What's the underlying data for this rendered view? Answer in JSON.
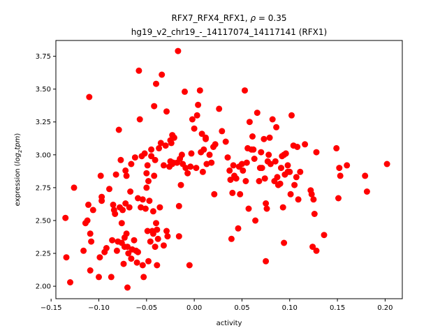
{
  "chart_data": {
    "type": "scatter",
    "title_line1_prefix": "RFX7_RFX4_RFX1, ",
    "title_rho_symbol": "ρ",
    "title_rho_value": " = 0.35",
    "title_line2": "hg19_v2_chr19_-_14117074_14117141 (RFX1)",
    "xlabel": "activity",
    "ylabel_prefix": "expression (",
    "ylabel_italic": "log",
    "ylabel_sub": "2",
    "ylabel_italic2": "tpm",
    "ylabel_suffix": ")",
    "xlim": [
      -0.145,
      0.218
    ],
    "ylim": [
      1.905,
      3.87
    ],
    "xticks": [
      -0.15,
      -0.1,
      -0.05,
      0.0,
      0.05,
      0.1,
      0.15,
      0.2
    ],
    "xtick_labels": [
      "−0.15",
      "−0.10",
      "−0.05",
      "0.00",
      "0.05",
      "0.10",
      "0.15",
      "0.20"
    ],
    "yticks": [
      2.0,
      2.25,
      2.5,
      2.75,
      3.0,
      3.25,
      3.5,
      3.75
    ],
    "ytick_labels": [
      "2.00",
      "2.25",
      "2.50",
      "2.75",
      "3.00",
      "3.25",
      "3.50",
      "3.75"
    ],
    "marker_color": "#ff0000",
    "points": [
      [
        -0.135,
        2.52
      ],
      [
        -0.134,
        2.22
      ],
      [
        -0.13,
        2.03
      ],
      [
        -0.126,
        2.75
      ],
      [
        -0.116,
        2.27
      ],
      [
        -0.114,
        2.48
      ],
      [
        -0.112,
        2.5
      ],
      [
        -0.111,
        2.62
      ],
      [
        -0.11,
        3.44
      ],
      [
        -0.109,
        2.4
      ],
      [
        -0.109,
        2.12
      ],
      [
        -0.108,
        2.34
      ],
      [
        -0.106,
        2.58
      ],
      [
        -0.1,
        2.07
      ],
      [
        -0.099,
        2.22
      ],
      [
        -0.098,
        2.84
      ],
      [
        -0.097,
        2.65
      ],
      [
        -0.097,
        2.68
      ],
      [
        -0.094,
        2.26
      ],
      [
        -0.092,
        2.29
      ],
      [
        -0.089,
        2.74
      ],
      [
        -0.087,
        2.07
      ],
      [
        -0.086,
        2.35
      ],
      [
        -0.085,
        2.62
      ],
      [
        -0.084,
        2.58
      ],
      [
        -0.083,
        2.55
      ],
      [
        -0.082,
        2.85
      ],
      [
        -0.081,
        2.27
      ],
      [
        -0.08,
        2.34
      ],
      [
        -0.079,
        3.19
      ],
      [
        -0.078,
        2.6
      ],
      [
        -0.077,
        2.96
      ],
      [
        -0.076,
        2.48
      ],
      [
        -0.076,
        2.33
      ],
      [
        -0.075,
        2.58
      ],
      [
        -0.074,
        2.17
      ],
      [
        -0.073,
        2.3
      ],
      [
        -0.073,
        2.37
      ],
      [
        -0.072,
        2.63
      ],
      [
        -0.072,
        2.88
      ],
      [
        -0.071,
        2.84
      ],
      [
        -0.071,
        2.4
      ],
      [
        -0.07,
        1.99
      ],
      [
        -0.07,
        2.3
      ],
      [
        -0.069,
        2.25
      ],
      [
        -0.068,
        2.6
      ],
      [
        -0.067,
        2.72
      ],
      [
        -0.066,
        2.21
      ],
      [
        -0.066,
        2.93
      ],
      [
        -0.065,
        2.28
      ],
      [
        -0.063,
        2.35
      ],
      [
        -0.062,
        2.98
      ],
      [
        -0.061,
        2.27
      ],
      [
        -0.06,
        2.18
      ],
      [
        -0.059,
        2.26
      ],
      [
        -0.059,
        2.67
      ],
      [
        -0.058,
        3.64
      ],
      [
        -0.057,
        3.27
      ],
      [
        -0.056,
        2.6
      ],
      [
        -0.055,
        2.99
      ],
      [
        -0.054,
        2.16
      ],
      [
        -0.054,
        2.66
      ],
      [
        -0.053,
        2.07
      ],
      [
        -0.052,
        3.01
      ],
      [
        -0.051,
        2.59
      ],
      [
        -0.05,
        2.75
      ],
      [
        -0.05,
        2.86
      ],
      [
        -0.049,
        2.42
      ],
      [
        -0.049,
        2.92
      ],
      [
        -0.048,
        2.19
      ],
      [
        -0.048,
        2.8
      ],
      [
        -0.047,
        2.65
      ],
      [
        -0.046,
        2.34
      ],
      [
        -0.045,
        3.04
      ],
      [
        -0.045,
        2.99
      ],
      [
        -0.044,
        2.42
      ],
      [
        -0.043,
        2.57
      ],
      [
        -0.043,
        2.4
      ],
      [
        -0.042,
        2.84
      ],
      [
        -0.042,
        3.37
      ],
      [
        -0.041,
        2.3
      ],
      [
        -0.041,
        2.96
      ],
      [
        -0.04,
        2.48
      ],
      [
        -0.04,
        3.54
      ],
      [
        -0.039,
        2.16
      ],
      [
        -0.039,
        2.43
      ],
      [
        -0.038,
        2.36
      ],
      [
        -0.037,
        3.05
      ],
      [
        -0.036,
        2.6
      ],
      [
        -0.035,
        3.09
      ],
      [
        -0.034,
        3.61
      ],
      [
        -0.032,
        2.31
      ],
      [
        -0.032,
        2.92
      ],
      [
        -0.03,
        3.07
      ],
      [
        -0.029,
        3.33
      ],
      [
        -0.029,
        2.42
      ],
      [
        -0.028,
        2.38
      ],
      [
        -0.026,
        2.91
      ],
      [
        -0.025,
        3.11
      ],
      [
        -0.025,
        2.95
      ],
      [
        -0.024,
        3.09
      ],
      [
        -0.023,
        3.15
      ],
      [
        -0.023,
        2.93
      ],
      [
        -0.022,
        2.94
      ],
      [
        -0.021,
        3.13
      ],
      [
        -0.018,
        2.94
      ],
      [
        -0.017,
        3.79
      ],
      [
        -0.016,
        2.61
      ],
      [
        -0.016,
        2.38
      ],
      [
        -0.015,
        2.97
      ],
      [
        -0.014,
        2.77
      ],
      [
        -0.013,
        3.0
      ],
      [
        -0.012,
        2.93
      ],
      [
        -0.01,
        3.48
      ],
      [
        -0.009,
        2.9
      ],
      [
        -0.007,
        2.86
      ],
      [
        -0.005,
        2.16
      ],
      [
        -0.004,
        2.91
      ],
      [
        -0.003,
        3.01
      ],
      [
        -0.002,
        3.27
      ],
      [
        0.0,
        3.2
      ],
      [
        0.002,
        2.9
      ],
      [
        0.003,
        3.3
      ],
      [
        0.004,
        3.38
      ],
      [
        0.006,
        3.49
      ],
      [
        0.007,
        3.02
      ],
      [
        0.008,
        3.16
      ],
      [
        0.009,
        2.87
      ],
      [
        0.01,
        3.04
      ],
      [
        0.012,
        3.13
      ],
      [
        0.012,
        3.12
      ],
      [
        0.013,
        2.93
      ],
      [
        0.016,
        3.0
      ],
      [
        0.018,
        2.94
      ],
      [
        0.02,
        3.06
      ],
      [
        0.021,
        2.7
      ],
      [
        0.022,
        3.08
      ],
      [
        0.026,
        3.35
      ],
      [
        0.029,
        3.18
      ],
      [
        0.033,
        3.1
      ],
      [
        0.035,
        2.98
      ],
      [
        0.037,
        2.88
      ],
      [
        0.038,
        2.81
      ],
      [
        0.039,
        2.36
      ],
      [
        0.04,
        2.71
      ],
      [
        0.041,
        2.92
      ],
      [
        0.042,
        2.84
      ],
      [
        0.044,
        2.82
      ],
      [
        0.046,
        2.44
      ],
      [
        0.047,
        2.91
      ],
      [
        0.048,
        2.7
      ],
      [
        0.05,
        2.93
      ],
      [
        0.051,
        2.88
      ],
      [
        0.053,
        3.49
      ],
      [
        0.054,
        2.8
      ],
      [
        0.055,
        2.94
      ],
      [
        0.056,
        3.05
      ],
      [
        0.057,
        2.59
      ],
      [
        0.058,
        3.25
      ],
      [
        0.06,
        3.04
      ],
      [
        0.061,
        3.14
      ],
      [
        0.062,
        3.04
      ],
      [
        0.063,
        2.97
      ],
      [
        0.064,
        2.5
      ],
      [
        0.066,
        3.32
      ],
      [
        0.068,
        2.8
      ],
      [
        0.069,
        2.9
      ],
      [
        0.07,
        3.02
      ],
      [
        0.071,
        2.9
      ],
      [
        0.073,
        3.12
      ],
      [
        0.074,
        2.82
      ],
      [
        0.075,
        2.19
      ],
      [
        0.075,
        2.63
      ],
      [
        0.076,
        2.59
      ],
      [
        0.077,
        2.95
      ],
      [
        0.078,
        3.0
      ],
      [
        0.079,
        3.13
      ],
      [
        0.08,
        2.93
      ],
      [
        0.082,
        3.27
      ],
      [
        0.084,
        2.8
      ],
      [
        0.085,
        2.95
      ],
      [
        0.086,
        3.21
      ],
      [
        0.087,
        2.83
      ],
      [
        0.088,
        2.77
      ],
      [
        0.09,
        2.78
      ],
      [
        0.091,
        2.9
      ],
      [
        0.092,
        2.99
      ],
      [
        0.093,
        2.6
      ],
      [
        0.094,
        3.0
      ],
      [
        0.094,
        2.33
      ],
      [
        0.095,
        2.85
      ],
      [
        0.096,
        3.01
      ],
      [
        0.098,
        2.92
      ],
      [
        0.098,
        2.87
      ],
      [
        0.1,
        2.87
      ],
      [
        0.101,
        2.7
      ],
      [
        0.102,
        3.3
      ],
      [
        0.104,
        3.07
      ],
      [
        0.105,
        2.77
      ],
      [
        0.107,
        2.83
      ],
      [
        0.108,
        3.06
      ],
      [
        0.109,
        2.66
      ],
      [
        0.111,
        2.87
      ],
      [
        0.116,
        3.08
      ],
      [
        0.122,
        2.73
      ],
      [
        0.123,
        2.7
      ],
      [
        0.124,
        2.3
      ],
      [
        0.125,
        2.66
      ],
      [
        0.126,
        2.55
      ],
      [
        0.128,
        3.02
      ],
      [
        0.128,
        2.27
      ],
      [
        0.136,
        2.39
      ],
      [
        0.149,
        3.05
      ],
      [
        0.151,
        2.67
      ],
      [
        0.152,
        2.9
      ],
      [
        0.153,
        2.84
      ],
      [
        0.16,
        2.92
      ],
      [
        0.179,
        2.84
      ],
      [
        0.181,
        2.72
      ],
      [
        0.202,
        2.93
      ]
    ]
  }
}
